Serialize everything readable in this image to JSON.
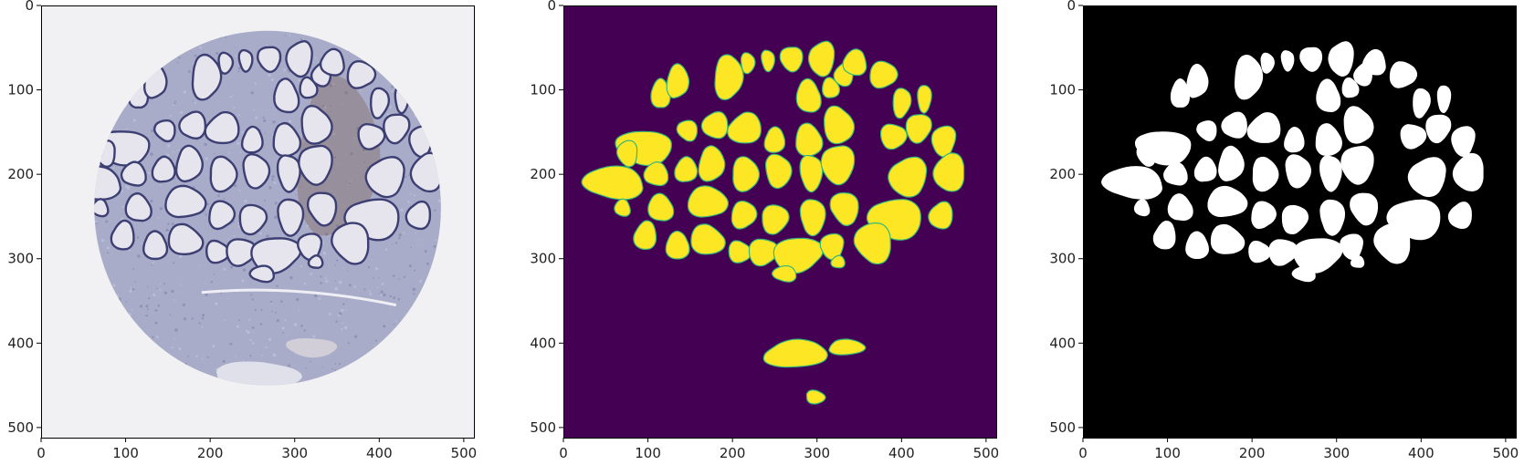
{
  "figure": {
    "colors": {
      "background": "#ffffff",
      "tissue_background": "#f1f1f3",
      "tissue": "#a8acc9",
      "tissue_dark": "#7b7fa5",
      "gland_outline": "#3d3f73",
      "gland_fill": "#e6e5ee",
      "stroma_brown": "#7a5a48",
      "prediction_background": "#440154",
      "prediction_foreground": "#fde725",
      "prediction_edge": "#35b779",
      "mask_background": "#000000",
      "mask_foreground": "#ffffff"
    },
    "panels": [
      {
        "name": "tissue-image",
        "x_ticks": [
          "0",
          "100",
          "200",
          "300",
          "400",
          "500"
        ],
        "y_ticks": [
          "0",
          "100",
          "200",
          "300",
          "400",
          "500"
        ]
      },
      {
        "name": "predicted-heatmap",
        "x_ticks": [
          "0",
          "100",
          "200",
          "300",
          "400",
          "500"
        ],
        "y_ticks": [
          "0",
          "100",
          "200",
          "300",
          "400",
          "500"
        ]
      },
      {
        "name": "ground-truth-mask",
        "x_ticks": [
          "0",
          "100",
          "200",
          "300",
          "400",
          "500"
        ],
        "y_ticks": [
          "0",
          "100",
          "200",
          "300",
          "400",
          "500"
        ]
      }
    ]
  }
}
